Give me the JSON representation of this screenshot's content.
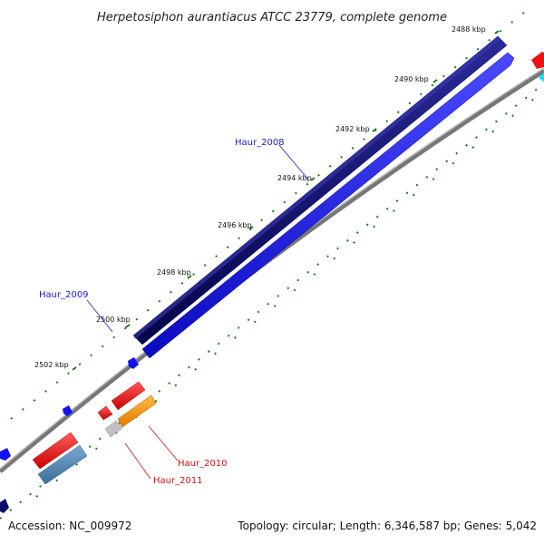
{
  "title": "Herpetosiphon aurantiacus ATCC 23779, complete genome",
  "ticks": [
    "2488 kbp",
    "2490 kbp",
    "2492 kbp",
    "2494 kbp",
    "2496 kbp",
    "2498 kbp",
    "2500 kbp",
    "2502 kbp"
  ],
  "genes": {
    "haur_2008": "Haur_2008",
    "haur_2009": "Haur_2009",
    "haur_2010": "Haur_2010",
    "haur_2011": "Haur_2011"
  },
  "colors": {
    "forward_dark": "#0b0b6e",
    "forward_blue": "#1212ee",
    "reverse_red": "#ee1111",
    "orange": "#ff9900",
    "steelblue": "#4682b4",
    "gray": "#bbbbbb",
    "cyan": "#00e5ee",
    "tick_green": "#1a7a1a",
    "backbone": "#808080"
  },
  "footer": {
    "accession": "Accession: NC_009972",
    "summary": "Topology: circular; Length: 6,346,587 bp; Genes: 5,042"
  }
}
